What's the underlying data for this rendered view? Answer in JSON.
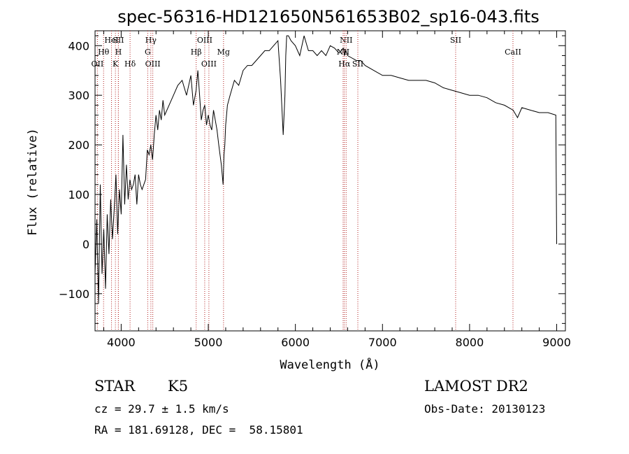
{
  "chart_data": {
    "type": "line",
    "title": "spec-56316-HD121650N561653B02_sp16-043.fits",
    "xlabel": "Wavelength (Å)",
    "ylabel": "Flux (relative)",
    "xlim": [
      3700,
      9100
    ],
    "ylim": [
      -175,
      430
    ],
    "xticks": [
      4000,
      5000,
      6000,
      7000,
      8000,
      9000
    ],
    "yticks": [
      -100,
      0,
      100,
      200,
      300,
      400
    ],
    "series": [
      {
        "name": "flux",
        "x": [
          3700,
          3720,
          3740,
          3760,
          3780,
          3800,
          3820,
          3840,
          3860,
          3880,
          3900,
          3920,
          3940,
          3960,
          3980,
          4000,
          4020,
          4040,
          4060,
          4080,
          4100,
          4120,
          4140,
          4160,
          4180,
          4200,
          4220,
          4240,
          4260,
          4280,
          4300,
          4320,
          4340,
          4360,
          4380,
          4400,
          4420,
          4440,
          4460,
          4480,
          4500,
          4550,
          4600,
          4650,
          4700,
          4750,
          4800,
          4830,
          4860,
          4880,
          4900,
          4920,
          4940,
          4960,
          4980,
          5000,
          5020,
          5040,
          5060,
          5080,
          5100,
          5120,
          5150,
          5170,
          5180,
          5190,
          5200,
          5220,
          5250,
          5300,
          5350,
          5400,
          5450,
          5500,
          5550,
          5600,
          5650,
          5700,
          5750,
          5800,
          5830,
          5860,
          5880,
          5890,
          5900,
          5920,
          5950,
          6000,
          6050,
          6100,
          6150,
          6200,
          6250,
          6300,
          6350,
          6400,
          6450,
          6500,
          6550,
          6563,
          6580,
          6600,
          6650,
          6700,
          6750,
          6800,
          6900,
          7000,
          7100,
          7200,
          7300,
          7400,
          7500,
          7600,
          7700,
          7800,
          7900,
          8000,
          8100,
          8200,
          8300,
          8400,
          8500,
          8550,
          8600,
          8700,
          8800,
          8900,
          8990,
          9000
        ],
        "values": [
          -60,
          50,
          -120,
          120,
          -60,
          30,
          -90,
          60,
          -20,
          90,
          10,
          70,
          140,
          20,
          110,
          60,
          220,
          80,
          160,
          90,
          130,
          110,
          120,
          140,
          80,
          140,
          120,
          110,
          120,
          130,
          190,
          180,
          200,
          170,
          220,
          260,
          230,
          270,
          250,
          290,
          260,
          280,
          300,
          320,
          330,
          300,
          340,
          280,
          310,
          350,
          300,
          250,
          270,
          280,
          240,
          260,
          240,
          230,
          270,
          250,
          230,
          200,
          160,
          120,
          180,
          200,
          240,
          280,
          300,
          330,
          320,
          350,
          360,
          360,
          370,
          380,
          390,
          390,
          400,
          410,
          330,
          220,
          300,
          380,
          420,
          420,
          410,
          400,
          380,
          420,
          390,
          390,
          380,
          390,
          380,
          400,
          395,
          385,
          395,
          380,
          390,
          380,
          375,
          370,
          370,
          360,
          350,
          340,
          340,
          335,
          330,
          330,
          330,
          325,
          315,
          310,
          305,
          300,
          300,
          295,
          285,
          280,
          270,
          255,
          275,
          270,
          265,
          265,
          260,
          0
        ]
      }
    ],
    "line_markers": [
      {
        "label": "OII",
        "x": 3727,
        "row": 3
      },
      {
        "label": "Hθ",
        "x": 3798,
        "row": 2
      },
      {
        "label": "HeI",
        "x": 3889,
        "row": 1
      },
      {
        "label": "K",
        "x": 3934,
        "row": 3
      },
      {
        "label": "SII",
        "x": 3968,
        "row": 1
      },
      {
        "label": "H",
        "x": 3968,
        "row": 2
      },
      {
        "label": "Hδ",
        "x": 4102,
        "row": 3
      },
      {
        "label": "Hγ",
        "x": 4341,
        "row": 1
      },
      {
        "label": "G",
        "x": 4305,
        "row": 2
      },
      {
        "label": "OIII",
        "x": 4363,
        "row": 3
      },
      {
        "label": "OIII",
        "x": 4959,
        "row": 1
      },
      {
        "label": "Hβ",
        "x": 4861,
        "row": 2
      },
      {
        "label": "OIII",
        "x": 5007,
        "row": 3
      },
      {
        "label": "Mg",
        "x": 5175,
        "row": 2
      },
      {
        "label": "NII",
        "x": 6583,
        "row": 1
      },
      {
        "label": "NII",
        "x": 6548,
        "row": 2
      },
      {
        "label": "Hα",
        "x": 6563,
        "row": 3
      },
      {
        "label": "SII",
        "x": 6717,
        "row": 3
      },
      {
        "label": "SII",
        "x": 7840,
        "row": 1
      },
      {
        "label": "CaII",
        "x": 8498,
        "row": 2
      }
    ]
  },
  "info": {
    "class_label": "STAR",
    "subclass": "K5",
    "survey": "LAMOST DR2",
    "cz": "cz = 29.7 ± 1.5 km/s",
    "obs_date": "Obs-Date: 20130123",
    "coords": "RA = 181.69128, DEC =  58.15801"
  }
}
